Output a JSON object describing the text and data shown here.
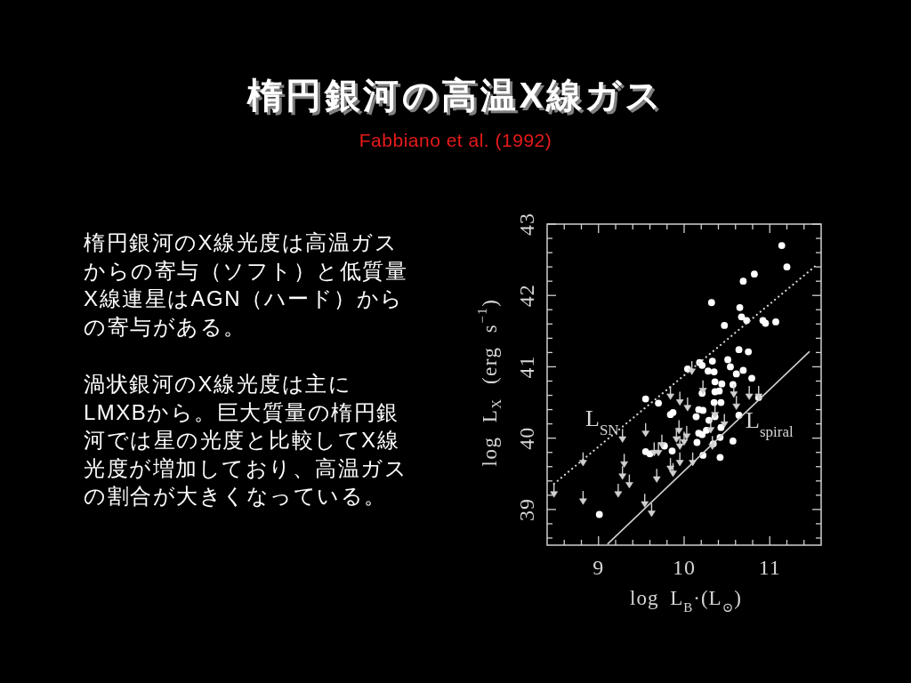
{
  "chart_data": [
    {
      "type": "scatter",
      "title": "楕円銀河の高温X線ガス",
      "subtitle": "Fabbiano et al. (1992)",
      "xlabel": "log L$_{B}$·(L$_{⊙}$)",
      "ylabel": "log L$_{X}$ (erg s$^{−1}$)",
      "xlim": [
        8.4,
        11.6
      ],
      "xticks": [
        {
          "value": 8.6,
          "label": null
        },
        {
          "value": 8.8,
          "label": null
        },
        9,
        {
          "value": 9.2,
          "label": null
        },
        {
          "value": 9.4,
          "label": null
        },
        {
          "value": 9.6,
          "label": null
        },
        {
          "value": 9.8,
          "label": null
        },
        10,
        {
          "value": 10.2,
          "label": null
        },
        {
          "value": 10.4,
          "label": null
        },
        {
          "value": 10.6,
          "label": null
        },
        {
          "value": 10.8,
          "label": null
        },
        11,
        {
          "value": 11.2,
          "label": null
        },
        {
          "value": 11.4,
          "label": null
        }
      ],
      "ylim": [
        38.5,
        43
      ],
      "yticks": [
        {
          "value": 38.6,
          "label": null
        },
        {
          "value": 38.8,
          "label": null
        },
        39,
        {
          "value": 39.2,
          "label": null
        },
        {
          "value": 39.4,
          "label": null
        },
        {
          "value": 39.6,
          "label": null
        },
        {
          "value": 39.8,
          "label": null
        },
        40,
        {
          "value": 40.2,
          "label": null
        },
        {
          "value": 40.4,
          "label": null
        },
        {
          "value": 40.6,
          "label": null
        },
        {
          "value": 40.8,
          "label": null
        },
        41,
        {
          "value": 41.2,
          "label": null
        },
        {
          "value": 41.4,
          "label": null
        },
        {
          "value": 41.6,
          "label": null
        },
        {
          "value": 41.8,
          "label": null
        },
        42,
        {
          "value": 42.2,
          "label": null
        },
        {
          "value": 42.4,
          "label": null
        },
        {
          "value": 42.6,
          "label": null
        },
        {
          "value": 42.8,
          "label": null
        },
        43
      ],
      "annotations": [
        "L$_{SN}$",
        "L$_{spiral}$"
      ],
      "series": [
        {
          "type": "scatter",
          "marker": "circle",
          "color": "#ffffff",
          "x": [
            11.14,
            11.2,
            10.82,
            10.69,
            10.32,
            10.65,
            10.67,
            10.73,
            10.92,
            10.95,
            11.07,
            10.47,
            10.64,
            10.75,
            10.18,
            10.21,
            10.33,
            10.51,
            10.04,
            10.54,
            10.28,
            10.35,
            10.69,
            10.61,
            10.79,
            10.36,
            10.44,
            10.57,
            9.55,
            9.7,
            9.84,
            9.87,
            10.21,
            10.36,
            10.41,
            10.35,
            10.43,
            10.87,
            10.17,
            10.22,
            10.14,
            10.29,
            10.36,
            10.64,
            10.43,
            10.26,
            10.17,
            10.21,
            10.42,
            10.57,
            10.34,
            9.77,
            10.15,
            10.22,
            10.42,
            9.55,
            9.6,
            9.86,
            9.01
          ],
          "values": [
            42.7,
            42.4,
            42.3,
            42.2,
            41.9,
            41.83,
            41.7,
            41.65,
            41.65,
            41.61,
            41.63,
            41.58,
            41.24,
            41.21,
            41.06,
            41.02,
            41.08,
            41.1,
            40.97,
            41.0,
            40.94,
            40.93,
            40.95,
            40.9,
            40.84,
            40.79,
            40.76,
            40.75,
            40.55,
            40.49,
            40.33,
            40.36,
            40.63,
            40.65,
            40.66,
            40.5,
            40.5,
            40.57,
            40.4,
            40.39,
            40.3,
            40.25,
            40.3,
            40.32,
            40.15,
            40.11,
            40.07,
            40.05,
            40.01,
            39.96,
            39.92,
            39.89,
            39.94,
            39.76,
            39.73,
            39.81,
            39.78,
            39.82,
            38.93
          ]
        },
        {
          "type": "scatter",
          "marker": "triangle",
          "color": "#d0d0d0",
          "x": [
            8.48,
            8.82,
            8.82,
            9.28,
            9.3,
            9.28,
            9.23,
            9.36,
            9.55,
            9.54,
            9.62,
            9.68,
            9.7,
            9.74,
            9.84,
            9.95,
            10.04,
            9.84,
            9.87,
            9.94,
            9.95,
            10.03,
            9.95,
            10.1,
            10.36,
            10.47,
            10.61,
            10.76,
            10.87,
            10.33,
            10.09,
            10.22,
            10.58,
            10.31,
            9.65,
            9.91,
            10.0
          ],
          "values": [
            39.21,
            39.65,
            39.11,
            39.98,
            39.63,
            39.46,
            39.21,
            39.34,
            40.06,
            39.07,
            38.94,
            39.42,
            39.79,
            39.9,
            40.58,
            40.5,
            40.42,
            39.57,
            39.5,
            40.1,
            39.88,
            40.02,
            39.65,
            39.65,
            40.32,
            40.19,
            40.44,
            40.58,
            40.58,
            39.88,
            40.93,
            40.66,
            40.61,
            40.11,
            39.79,
            39.98,
            39.94
          ],
          "errors": [
            [
              39.21,
              39.36
            ],
            [
              39.65,
              39.8
            ],
            [
              39.11,
              39.26
            ],
            [
              39.98,
              40.13
            ],
            [
              39.63,
              39.78
            ],
            [
              39.46,
              39.61
            ],
            [
              39.21,
              39.36
            ],
            [
              39.34,
              39.49
            ],
            [
              40.06,
              40.21
            ],
            [
              39.07,
              39.22
            ],
            [
              38.94,
              39.09
            ],
            [
              39.42,
              39.57
            ],
            [
              39.79,
              39.94
            ],
            [
              39.9,
              40.05
            ],
            [
              40.58,
              40.73
            ],
            [
              40.5,
              40.65
            ],
            [
              40.42,
              40.57
            ],
            [
              39.57,
              39.72
            ],
            [
              39.5,
              39.65
            ],
            [
              40.1,
              40.25
            ],
            [
              39.88,
              40.03
            ],
            [
              40.02,
              40.17
            ],
            [
              39.65,
              39.8
            ],
            [
              39.65,
              39.8
            ],
            [
              40.32,
              40.47
            ],
            [
              40.19,
              40.34
            ],
            [
              40.44,
              40.59
            ],
            [
              40.58,
              40.73
            ],
            [
              40.58,
              40.73
            ],
            [
              39.88,
              40.03
            ],
            [
              40.93,
              41.08
            ],
            [
              40.66,
              40.81
            ],
            [
              40.61,
              40.76
            ],
            [
              40.11,
              40.26
            ],
            [
              39.79,
              39.94
            ],
            [
              39.98,
              40.13
            ],
            [
              39.94,
              40.09
            ]
          ]
        },
        {
          "type": "line",
          "line_style": "dotted",
          "color": "#d8d8d8",
          "x": [
            8.48,
            11.53
          ],
          "values": [
            39.36,
            42.41
          ]
        },
        {
          "type": "line",
          "line_style": "solid",
          "color": "#d0d0d0",
          "x": [
            9.11,
            11.46
          ],
          "values": [
            38.52,
            41.21
          ]
        }
      ]
    },
    {
      "type": "other",
      "annotations": [
        "楕円銀河のX線光度は高温ガスからの寄与（ソフト）と低質量X線連星はAGN（ハード）からの寄与がある。",
        "渦状銀河のX線光度は主にLMXBから。巨大質量の楕円銀河では星の光度と比較してX線光度が増加しており、高温ガスの割合が大きくなっている。"
      ]
    }
  ]
}
